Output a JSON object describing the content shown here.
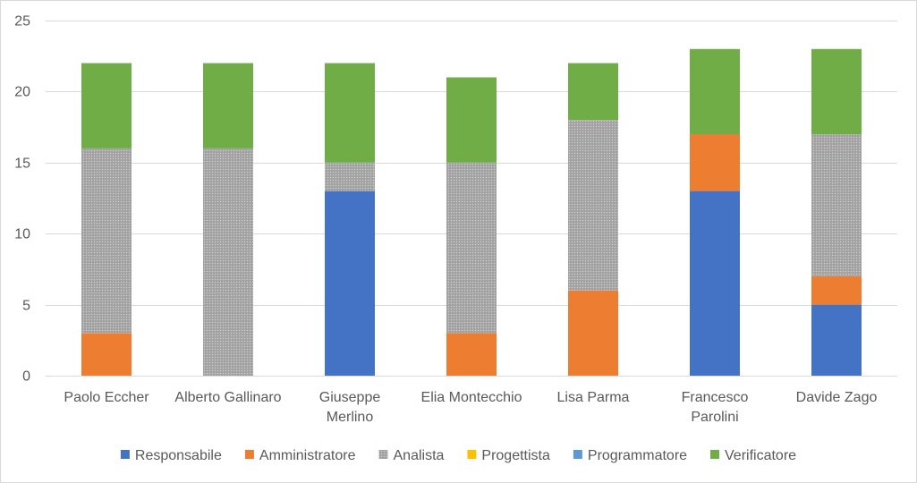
{
  "chart_data": {
    "type": "bar",
    "stacked": true,
    "categories": [
      [
        "Paolo Eccher"
      ],
      [
        "Alberto Gallinaro"
      ],
      [
        "Giuseppe",
        "Merlino"
      ],
      [
        "Elia Montecchio"
      ],
      [
        "Lisa Parma"
      ],
      [
        "Francesco",
        "Parolini"
      ],
      [
        "Davide Zago"
      ]
    ],
    "series": [
      {
        "name": "Responsabile",
        "color": "#4472c4",
        "values": [
          0,
          0,
          13,
          0,
          0,
          13,
          5
        ]
      },
      {
        "name": "Amministratore",
        "color": "#ed7d31",
        "values": [
          3,
          0,
          0,
          3,
          6,
          4,
          2
        ]
      },
      {
        "name": "Analista",
        "color": "#a5a5a5",
        "pattern": "dotted-gray",
        "values": [
          13,
          16,
          2,
          12,
          12,
          0,
          10
        ]
      },
      {
        "name": "Progettista",
        "color": "#ffc000",
        "values": [
          0,
          0,
          0,
          0,
          0,
          0,
          0
        ]
      },
      {
        "name": "Programmatore",
        "color": "#5b9bd5",
        "values": [
          0,
          0,
          0,
          0,
          0,
          0,
          0
        ]
      },
      {
        "name": "Verificatore",
        "color": "#70ad47",
        "values": [
          6,
          6,
          7,
          6,
          4,
          6,
          6
        ]
      }
    ],
    "ylim": [
      0,
      25
    ],
    "yticks": [
      0,
      5,
      10,
      15,
      20,
      25
    ],
    "grid": true,
    "legend": "bottom",
    "title": "",
    "xlabel": "",
    "ylabel": ""
  }
}
